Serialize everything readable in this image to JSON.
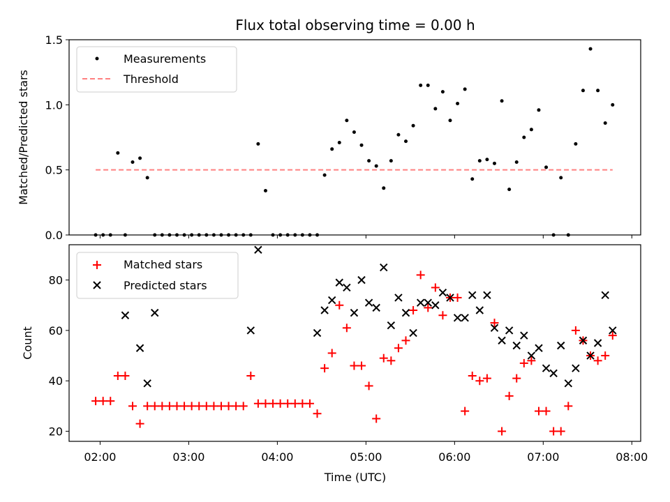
{
  "title": "Flux total observing time = 0.00 h",
  "xlabel": "Time (UTC)",
  "xticks": [
    "02:00",
    "03:00",
    "04:00",
    "05:00",
    "06:00",
    "07:00",
    "08:00"
  ],
  "colors": {
    "measurements": "#000000",
    "threshold": "#ff8080",
    "matched": "#ff0000",
    "predicted": "#000000"
  },
  "chart_data": [
    {
      "type": "scatter",
      "ylabel": "Matched/Predicted stars",
      "ylim": [
        0.0,
        1.5
      ],
      "yticks": [
        "0.0",
        "0.5",
        "1.0",
        "1.5"
      ],
      "xlim": [
        "01:39",
        "08:06"
      ],
      "legend_position": "upper left",
      "legend": [
        "Measurements",
        "Threshold"
      ],
      "threshold": {
        "value": 0.5,
        "x_start": "01:57",
        "x_end": "07:47"
      },
      "series": [
        {
          "name": "Measurements",
          "marker": "dot",
          "x": [
            "01:57",
            "02:02",
            "02:07",
            "02:12",
            "02:17",
            "02:22",
            "02:27",
            "02:32",
            "02:37",
            "02:42",
            "02:47",
            "02:52",
            "02:57",
            "03:02",
            "03:07",
            "03:12",
            "03:17",
            "03:22",
            "03:27",
            "03:32",
            "03:37",
            "03:42",
            "03:47",
            "03:52",
            "03:57",
            "04:02",
            "04:07",
            "04:12",
            "04:17",
            "04:22",
            "04:27",
            "04:32",
            "04:37",
            "04:42",
            "04:47",
            "04:52",
            "04:57",
            "05:02",
            "05:07",
            "05:12",
            "05:17",
            "05:22",
            "05:27",
            "05:32",
            "05:37",
            "05:42",
            "05:47",
            "05:52",
            "05:57",
            "06:02",
            "06:07",
            "06:12",
            "06:17",
            "06:22",
            "06:27",
            "06:32",
            "06:37",
            "06:42",
            "06:47",
            "06:52",
            "06:57",
            "07:02",
            "07:07",
            "07:12",
            "07:17",
            "07:22",
            "07:27",
            "07:32",
            "07:37",
            "07:42",
            "07:47"
          ],
          "y": [
            0,
            0,
            0,
            0.63,
            0,
            0.56,
            0.59,
            0.44,
            0,
            0,
            0,
            0,
            0,
            0,
            0,
            0,
            0,
            0,
            0,
            0,
            0,
            0,
            0.7,
            0.34,
            0,
            0,
            0,
            0,
            0,
            0,
            0,
            0.46,
            0.66,
            0.71,
            0.88,
            0.79,
            0.69,
            0.57,
            0.53,
            0.36,
            0.57,
            0.77,
            0.72,
            0.84,
            1.15,
            1.15,
            0.97,
            1.1,
            0.88,
            1.01,
            1.12,
            0.43,
            0.57,
            0.58,
            0.55,
            1.03,
            0.35,
            0.56,
            0.75,
            0.81,
            0.96,
            0.52,
            0,
            0.44,
            0,
            0.7,
            1.11,
            1.43,
            1.11,
            0.86,
            1.0
          ]
        }
      ]
    },
    {
      "type": "scatter",
      "ylabel": "Count",
      "ylim": [
        16,
        94
      ],
      "yticks": [
        "20",
        "40",
        "60",
        "80"
      ],
      "xlim": [
        "01:39",
        "08:06"
      ],
      "legend_position": "upper left",
      "legend": [
        "Matched stars",
        "Predicted stars"
      ],
      "series": [
        {
          "name": "Matched stars",
          "marker": "plus",
          "x": [
            "01:57",
            "02:02",
            "02:07",
            "02:12",
            "02:17",
            "02:22",
            "02:27",
            "02:32",
            "02:37",
            "02:42",
            "02:47",
            "02:52",
            "02:57",
            "03:02",
            "03:07",
            "03:12",
            "03:17",
            "03:22",
            "03:27",
            "03:32",
            "03:37",
            "03:42",
            "03:47",
            "03:52",
            "03:57",
            "04:02",
            "04:07",
            "04:12",
            "04:17",
            "04:22",
            "04:27",
            "04:32",
            "04:37",
            "04:42",
            "04:47",
            "04:52",
            "04:57",
            "05:02",
            "05:07",
            "05:12",
            "05:17",
            "05:22",
            "05:27",
            "05:32",
            "05:37",
            "05:42",
            "05:47",
            "05:52",
            "05:57",
            "06:02",
            "06:07",
            "06:12",
            "06:17",
            "06:22",
            "06:27",
            "06:32",
            "06:37",
            "06:42",
            "06:47",
            "06:52",
            "06:57",
            "07:02",
            "07:07",
            "07:12",
            "07:17",
            "07:22",
            "07:27",
            "07:32",
            "07:37",
            "07:42",
            "07:47"
          ],
          "y": [
            32,
            32,
            32,
            42,
            42,
            30,
            23,
            30,
            30,
            30,
            30,
            30,
            30,
            30,
            30,
            30,
            30,
            30,
            30,
            30,
            30,
            42,
            31,
            31,
            31,
            31,
            31,
            31,
            31,
            31,
            27,
            45,
            51,
            70,
            61,
            46,
            46,
            38,
            25,
            49,
            48,
            53,
            56,
            68,
            82,
            69,
            77,
            66,
            73,
            73,
            28,
            42,
            40,
            41,
            63,
            20,
            34,
            41,
            47,
            48,
            28,
            28,
            20,
            20,
            30,
            60,
            56,
            50,
            48,
            50,
            58
          ]
        },
        {
          "name": "Predicted stars",
          "marker": "x",
          "x": [
            "02:17",
            "02:27",
            "02:32",
            "02:37",
            "03:42",
            "03:47",
            "04:27",
            "04:32",
            "04:37",
            "04:42",
            "04:47",
            "04:52",
            "04:57",
            "05:02",
            "05:07",
            "05:12",
            "05:17",
            "05:22",
            "05:27",
            "05:32",
            "05:37",
            "05:42",
            "05:47",
            "05:52",
            "05:57",
            "06:02",
            "06:07",
            "06:12",
            "06:17",
            "06:22",
            "06:27",
            "06:32",
            "06:37",
            "06:42",
            "06:47",
            "06:52",
            "06:57",
            "07:02",
            "07:07",
            "07:12",
            "07:17",
            "07:22",
            "07:27",
            "07:32",
            "07:37",
            "07:42",
            "07:47"
          ],
          "y": [
            66,
            53,
            39,
            67,
            60,
            92,
            59,
            68,
            72,
            79,
            77,
            67,
            80,
            71,
            69,
            85,
            62,
            73,
            67,
            59,
            71,
            71,
            70,
            75,
            73,
            65,
            65,
            74,
            68,
            74,
            61,
            56,
            60,
            54,
            58,
            50,
            53,
            45,
            43,
            54,
            39,
            45,
            56,
            50,
            55,
            74,
            60
          ]
        }
      ]
    }
  ]
}
